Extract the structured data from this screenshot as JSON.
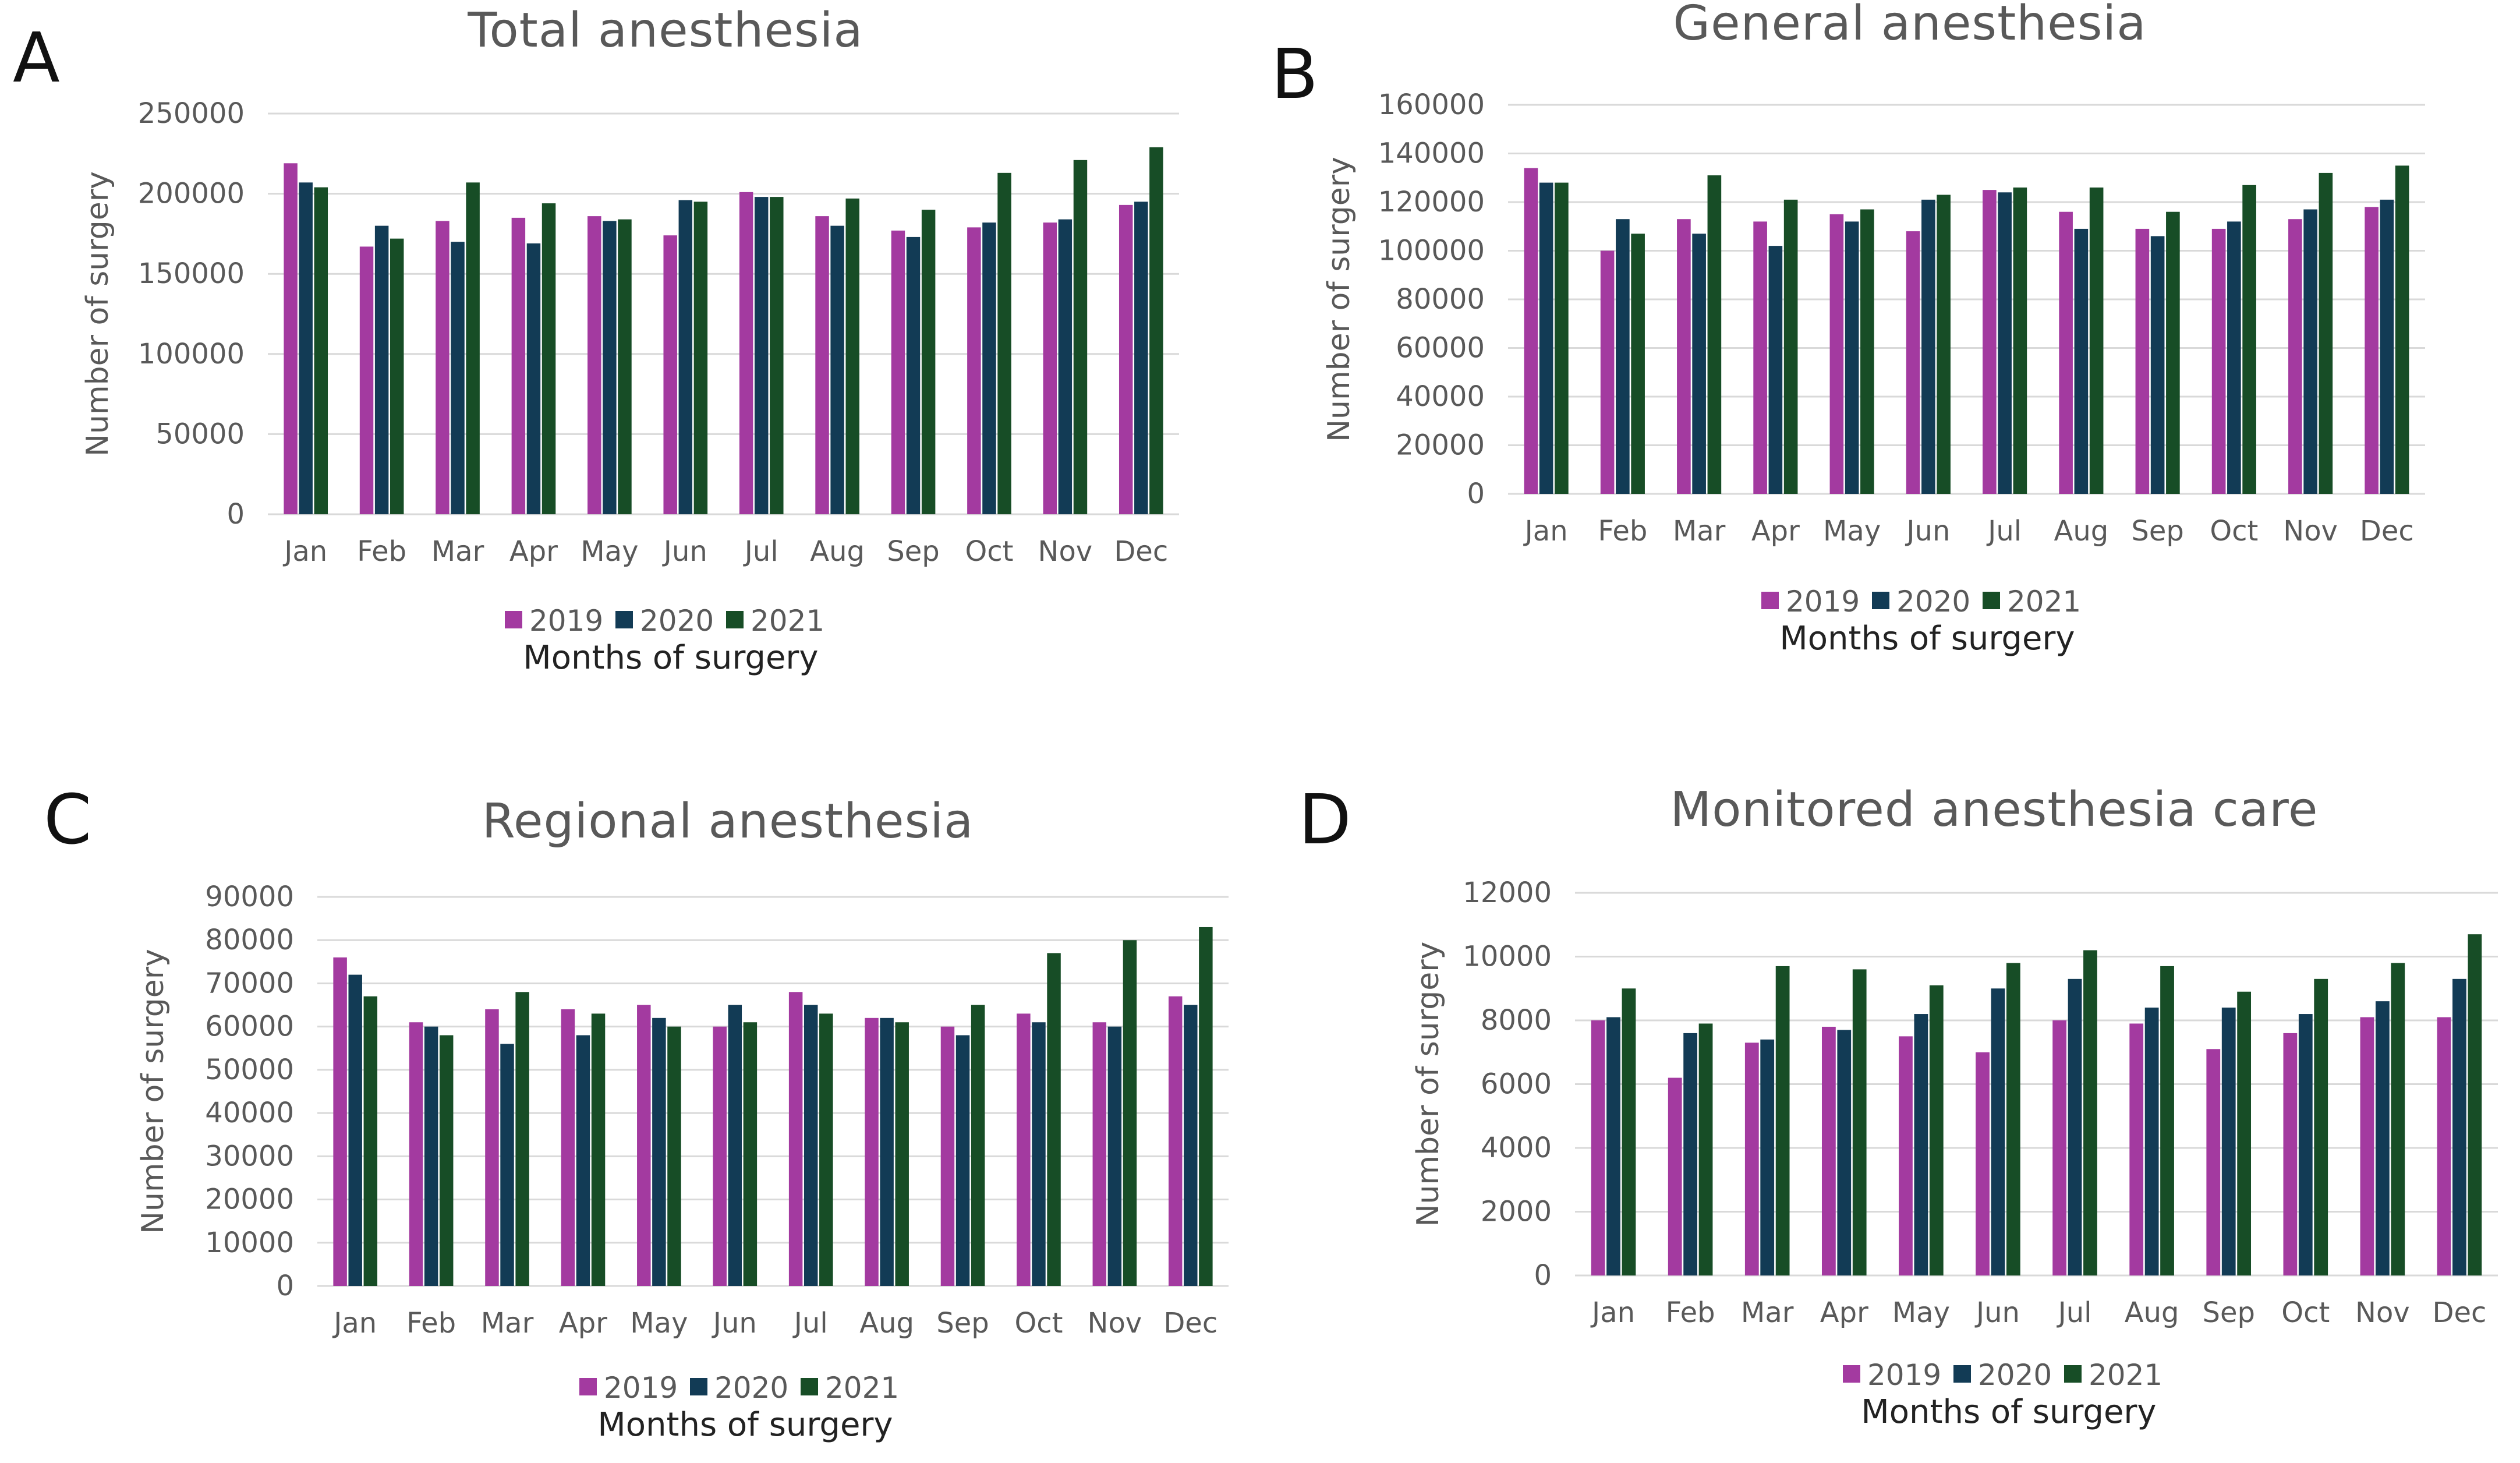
{
  "colors": {
    "2019": "#a33aa0",
    "2020": "#123b55",
    "2021": "#174d26"
  },
  "chart_data": [
    {
      "id": "A",
      "panel_letter": "A",
      "type": "bar",
      "title": "Total anesthesia",
      "xlabel": "Months of surgery",
      "ylabel": "Number of surgery",
      "ylim": [
        0,
        250000
      ],
      "yticks": [
        "0",
        "50000",
        "100000",
        "150000",
        "200000",
        "250000"
      ],
      "ytick_values": [
        0,
        50000,
        100000,
        150000,
        200000,
        250000
      ],
      "categories": [
        "Jan",
        "Feb",
        "Mar",
        "Apr",
        "May",
        "Jun",
        "Jul",
        "Aug",
        "Sep",
        "Oct",
        "Nov",
        "Dec"
      ],
      "series": [
        {
          "name": "2019",
          "values": [
            219000,
            167000,
            183000,
            185000,
            186000,
            174000,
            201000,
            186000,
            177000,
            179000,
            182000,
            193000
          ]
        },
        {
          "name": "2020",
          "values": [
            207000,
            180000,
            170000,
            169000,
            183000,
            196000,
            198000,
            180000,
            173000,
            182000,
            184000,
            195000
          ]
        },
        {
          "name": "2021",
          "values": [
            204000,
            172000,
            207000,
            194000,
            184000,
            195000,
            198000,
            197000,
            190000,
            213000,
            221000,
            229000
          ]
        }
      ]
    },
    {
      "id": "B",
      "panel_letter": "B",
      "type": "bar",
      "title": "General anesthesia",
      "xlabel": "Months of surgery",
      "ylabel": "Number of surgery",
      "ylim": [
        0,
        160000
      ],
      "yticks": [
        "0",
        "20000",
        "40000",
        "60000",
        "80000",
        "100000",
        "120000",
        "140000",
        "160000"
      ],
      "ytick_values": [
        0,
        20000,
        40000,
        60000,
        80000,
        100000,
        120000,
        140000,
        160000
      ],
      "categories": [
        "Jan",
        "Feb",
        "Mar",
        "Apr",
        "May",
        "Jun",
        "Jul",
        "Aug",
        "Sep",
        "Oct",
        "Nov",
        "Dec"
      ],
      "series": [
        {
          "name": "2019",
          "values": [
            134000,
            100000,
            113000,
            112000,
            115000,
            108000,
            125000,
            116000,
            109000,
            109000,
            113000,
            118000
          ]
        },
        {
          "name": "2020",
          "values": [
            128000,
            113000,
            107000,
            102000,
            112000,
            121000,
            124000,
            109000,
            106000,
            112000,
            117000,
            121000
          ]
        },
        {
          "name": "2021",
          "values": [
            128000,
            107000,
            131000,
            121000,
            117000,
            123000,
            126000,
            126000,
            116000,
            127000,
            132000,
            135000
          ]
        }
      ]
    },
    {
      "id": "C",
      "panel_letter": "C",
      "type": "bar",
      "title": "Regional anesthesia",
      "xlabel": "Months of surgery",
      "ylabel": "Number of surgery",
      "ylim": [
        0,
        90000
      ],
      "yticks": [
        "0",
        "10000",
        "20000",
        "30000",
        "40000",
        "50000",
        "60000",
        "70000",
        "80000",
        "90000"
      ],
      "ytick_values": [
        0,
        10000,
        20000,
        30000,
        40000,
        50000,
        60000,
        70000,
        80000,
        90000
      ],
      "categories": [
        "Jan",
        "Feb",
        "Mar",
        "Apr",
        "May",
        "Jun",
        "Jul",
        "Aug",
        "Sep",
        "Oct",
        "Nov",
        "Dec"
      ],
      "series": [
        {
          "name": "2019",
          "values": [
            76000,
            61000,
            64000,
            64000,
            65000,
            60000,
            68000,
            62000,
            60000,
            63000,
            61000,
            67000
          ]
        },
        {
          "name": "2020",
          "values": [
            72000,
            60000,
            56000,
            58000,
            62000,
            65000,
            65000,
            62000,
            58000,
            61000,
            60000,
            65000
          ]
        },
        {
          "name": "2021",
          "values": [
            67000,
            58000,
            68000,
            63000,
            60000,
            61000,
            63000,
            61000,
            65000,
            77000,
            80000,
            83000
          ]
        }
      ]
    },
    {
      "id": "D",
      "panel_letter": "D",
      "type": "bar",
      "title": "Monitored anesthesia care",
      "xlabel": "Months of surgery",
      "ylabel": "Number of surgery",
      "ylim": [
        0,
        12000
      ],
      "yticks": [
        "0",
        "2000",
        "4000",
        "6000",
        "8000",
        "10000",
        "12000"
      ],
      "ytick_values": [
        0,
        2000,
        4000,
        6000,
        8000,
        10000,
        12000
      ],
      "categories": [
        "Jan",
        "Feb",
        "Mar",
        "Apr",
        "May",
        "Jun",
        "Jul",
        "Aug",
        "Sep",
        "Oct",
        "Nov",
        "Dec"
      ],
      "series": [
        {
          "name": "2019",
          "values": [
            8000,
            6200,
            7300,
            7800,
            7500,
            7000,
            8000,
            7900,
            7100,
            7600,
            8100,
            8100
          ]
        },
        {
          "name": "2020",
          "values": [
            8100,
            7600,
            7400,
            7700,
            8200,
            9000,
            9300,
            8400,
            8400,
            8200,
            8600,
            9300
          ]
        },
        {
          "name": "2021",
          "values": [
            9000,
            7900,
            9700,
            9600,
            9100,
            9800,
            10200,
            9700,
            8900,
            9300,
            9800,
            10700
          ]
        }
      ]
    }
  ]
}
